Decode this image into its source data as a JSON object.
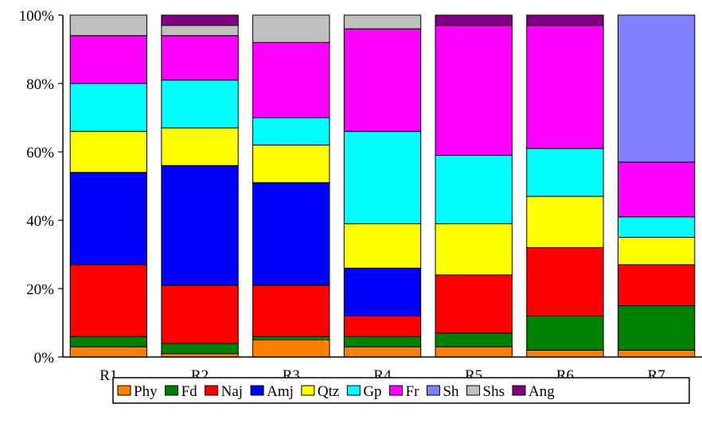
{
  "chart_data": {
    "type": "bar",
    "stacked": true,
    "percent": true,
    "categories": [
      "R1",
      "R2",
      "R3",
      "R4",
      "R5",
      "R6",
      "R7"
    ],
    "ylim": [
      0,
      100
    ],
    "yticks": [
      "0%",
      "20%",
      "40%",
      "60%",
      "80%",
      "100%"
    ],
    "ytick_values": [
      0,
      20,
      40,
      60,
      80,
      100
    ],
    "legend_position": "bottom",
    "grid": false,
    "series": [
      {
        "name": "Phy",
        "color": "#ff8000",
        "values": [
          3,
          1,
          5,
          3,
          3,
          2,
          2
        ]
      },
      {
        "name": "Fd",
        "color": "#008000",
        "values": [
          3,
          3,
          1,
          3,
          4,
          10,
          13
        ]
      },
      {
        "name": "Naj",
        "color": "#ff0000",
        "values": [
          21,
          17,
          15,
          6,
          17,
          20,
          12
        ]
      },
      {
        "name": "Amj",
        "color": "#0000ff",
        "values": [
          27,
          35,
          30,
          14,
          0,
          0,
          0
        ]
      },
      {
        "name": "Qtz",
        "color": "#ffff00",
        "values": [
          12,
          11,
          11,
          13,
          15,
          15,
          8
        ]
      },
      {
        "name": "Gp",
        "color": "#00ffff",
        "values": [
          14,
          14,
          8,
          27,
          20,
          14,
          6
        ]
      },
      {
        "name": "Fr",
        "color": "#ff00ff",
        "values": [
          14,
          13,
          22,
          30,
          38,
          36,
          16
        ]
      },
      {
        "name": "Sh",
        "color": "#8080ff",
        "values": [
          0,
          0,
          0,
          0,
          0,
          0,
          43
        ]
      },
      {
        "name": "Shs",
        "color": "#c0c0c0",
        "values": [
          6,
          3,
          8,
          4,
          0,
          0,
          0
        ]
      },
      {
        "name": "Ang",
        "color": "#800080",
        "values": [
          0,
          3,
          0,
          0,
          3,
          3,
          0
        ]
      }
    ]
  }
}
